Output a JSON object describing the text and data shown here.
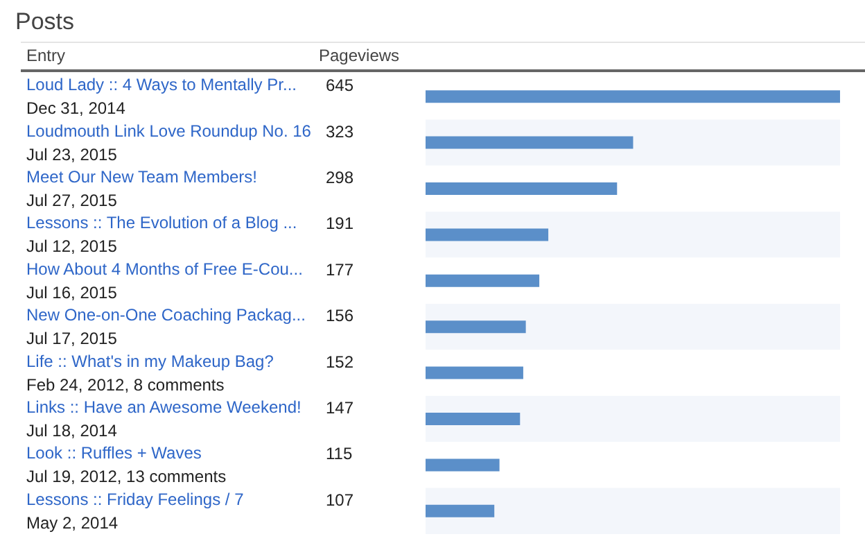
{
  "chart_data": {
    "type": "bar",
    "orientation": "horizontal",
    "title": "Posts",
    "ylabel": "Entry",
    "xlabel": "Pageviews",
    "categories": [
      "Loud Lady :: 4 Ways to Mentally Pr...\nDec 31, 2014",
      "Loudmouth Link Love Roundup No. 16\nJul 23, 2015",
      "Meet Our New Team Members!\nJul 27, 2015",
      "Lessons :: The Evolution of a Blog ...\nJul 12, 2015",
      "How About 4 Months of Free E-Cou...\nJul 16, 2015",
      "New One-on-One Coaching Packag...\nJul 17, 2015",
      "Life :: What's in my Makeup Bag?\nFeb 24, 2012, 8 comments",
      "Links :: Have an Awesome Weekend!\nJul 18, 2014",
      "Look :: Ruffles + Waves\nJul 19, 2012, 13 comments",
      "Lessons :: Friday Feelings / 7\nMay 2, 2014"
    ],
    "values": [
      645,
      323,
      298,
      191,
      177,
      156,
      152,
      147,
      115,
      107
    ],
    "color": "#5b8fc9",
    "data_labels": true
  }
}
